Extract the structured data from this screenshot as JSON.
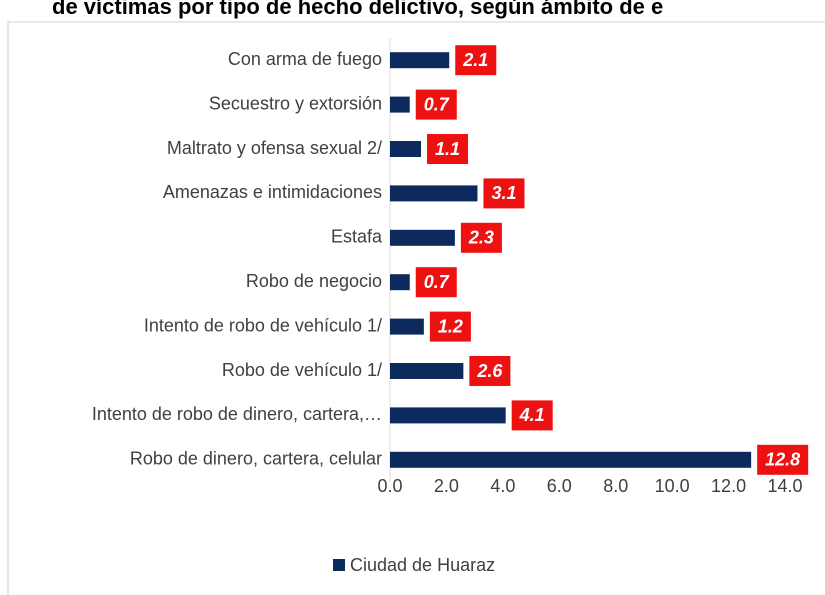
{
  "chart_data": {
    "type": "hbar",
    "title": "de víctimas por tipo de hecho delictivo, según ámbito de e",
    "categories": [
      "Con arma de fuego",
      "Secuestro y extorsión",
      "Maltrato y ofensa sexual 2/",
      "Amenazas e intimidaciones",
      "Estafa",
      "Robo de negocio",
      "Intento de robo de vehículo 1/",
      "Robo de vehículo 1/",
      "Intento de robo de dinero, cartera,…",
      "Robo de dinero, cartera, celular"
    ],
    "series": [
      {
        "name": "Ciudad de Huaraz",
        "color": "#0d2a5e",
        "values": [
          2.1,
          0.7,
          1.1,
          3.1,
          2.3,
          0.7,
          1.2,
          2.6,
          4.1,
          12.8
        ]
      }
    ],
    "label_color": "#ee1111",
    "xlim": [
      0,
      14
    ],
    "xticks": [
      {
        "value": 0,
        "label": "0.0"
      },
      {
        "value": 2,
        "label": "2.0"
      },
      {
        "value": 4,
        "label": "4.0"
      },
      {
        "value": 6,
        "label": "6.0"
      },
      {
        "value": 8,
        "label": "8.0"
      },
      {
        "value": 10,
        "label": "10.0"
      },
      {
        "value": 12,
        "label": "12.0"
      },
      {
        "value": 14,
        "label": "14.0"
      }
    ],
    "grid": false,
    "legend": "bottom"
  }
}
